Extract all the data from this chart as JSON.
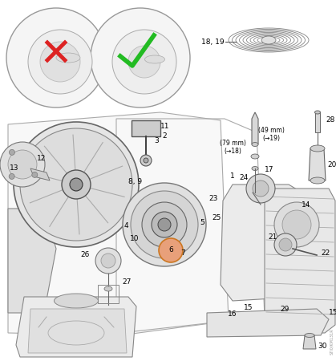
{
  "bg_color": "#ffffff",
  "line_color": "#2a2a2a",
  "gray_fill": "#e8e8e8",
  "gray_mid": "#c8c8c8",
  "gray_dark": "#888888",
  "highlight_orange": "#e8a07a",
  "red_x": "#dd2222",
  "green_check": "#22bb22",
  "figsize": [
    4.19,
    4.5
  ],
  "dpi": 100,
  "xlim": [
    0,
    419
  ],
  "ylim": [
    0,
    450
  ]
}
